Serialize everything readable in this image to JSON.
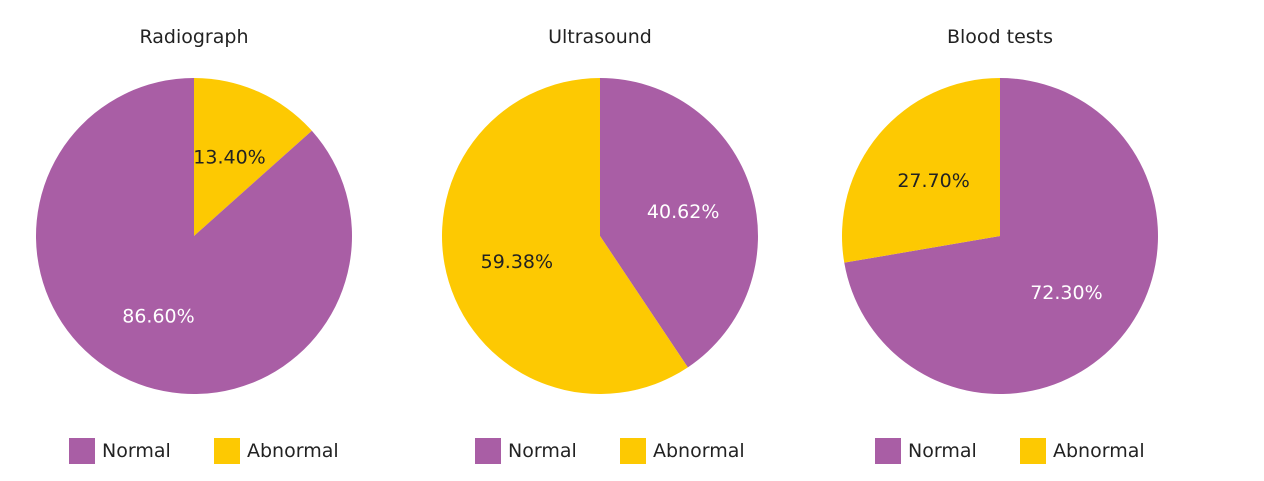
{
  "colors": {
    "Normal": "#A95EA5",
    "Abnormal": "#FDC902"
  },
  "chart_data": [
    {
      "type": "pie",
      "title": "Radiograph",
      "slices": [
        {
          "label": "Abnormal",
          "value": 13.4,
          "text": "13.40%"
        },
        {
          "label": "Normal",
          "value": 86.6,
          "text": "86.60%"
        }
      ],
      "legend": [
        "Normal",
        "Abnormal"
      ],
      "legend_position": "bottom"
    },
    {
      "type": "pie",
      "title": "Ultrasound",
      "slices": [
        {
          "label": "Normal",
          "value": 40.62,
          "text": "40.62%"
        },
        {
          "label": "Abnormal",
          "value": 59.38,
          "text": "59.38%"
        }
      ],
      "legend": [
        "Normal",
        "Abnormal"
      ],
      "legend_position": "bottom"
    },
    {
      "type": "pie",
      "title": "Blood tests",
      "slices": [
        {
          "label": "Normal",
          "value": 72.3,
          "text": "72.30%"
        },
        {
          "label": "Abnormal",
          "value": 27.7,
          "text": "27.70%"
        }
      ],
      "legend": [
        "Normal",
        "Abnormal"
      ],
      "legend_position": "bottom"
    }
  ]
}
